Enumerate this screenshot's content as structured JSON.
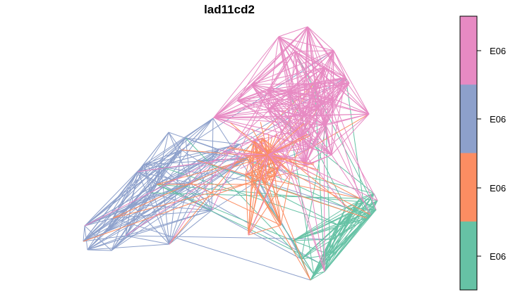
{
  "chart_data": {
    "type": "network",
    "title": "lad11cd2",
    "legend": {
      "placement": "right",
      "categories": [
        {
          "label": "E06",
          "color": "#E78AC3"
        },
        {
          "label": "E06",
          "color": "#8DA0CB"
        },
        {
          "label": "E06",
          "color": "#FC8D62"
        },
        {
          "label": "E06",
          "color": "#66C2A5"
        }
      ]
    },
    "groups": [
      {
        "color": "#E78AC3"
      },
      {
        "color": "#8DA0CB"
      },
      {
        "color": "#FC8D62"
      },
      {
        "color": "#66C2A5"
      }
    ]
  }
}
